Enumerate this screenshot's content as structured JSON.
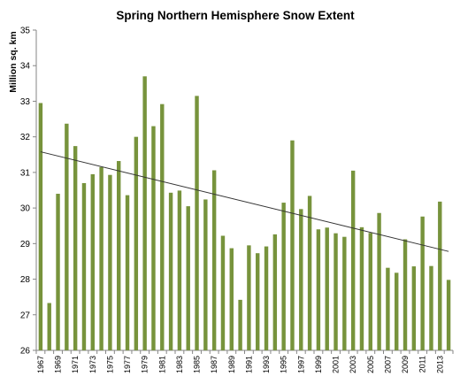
{
  "chart_data": {
    "type": "bar",
    "title": "Spring Northern Hemisphere Snow Extent",
    "xlabel": "",
    "ylabel": "Million sq. km",
    "ylim": [
      26,
      35
    ],
    "yticks": [
      26,
      27,
      28,
      29,
      30,
      31,
      32,
      33,
      34,
      35
    ],
    "grid": false,
    "legend": "none",
    "categories": [
      "1967",
      "1968",
      "1969",
      "1970",
      "1971",
      "1972",
      "1973",
      "1974",
      "1975",
      "1976",
      "1977",
      "1978",
      "1979",
      "1980",
      "1981",
      "1982",
      "1983",
      "1984",
      "1985",
      "1986",
      "1987",
      "1988",
      "1989",
      "1990",
      "1991",
      "1992",
      "1993",
      "1994",
      "1995",
      "1996",
      "1997",
      "1998",
      "1999",
      "2000",
      "2001",
      "2002",
      "2003",
      "2004",
      "2005",
      "2006",
      "2007",
      "2008",
      "2009",
      "2010",
      "2011",
      "2012",
      "2013",
      "2014"
    ],
    "tick_labels": [
      "1967",
      "1969",
      "1971",
      "1973",
      "1975",
      "1977",
      "1979",
      "1981",
      "1983",
      "1985",
      "1987",
      "1989",
      "1991",
      "1993",
      "1995",
      "1997",
      "1999",
      "2001",
      "2003",
      "2005",
      "2007",
      "2009",
      "2011",
      "2013"
    ],
    "series": [
      {
        "values": [
          32.95,
          27.33,
          30.4,
          32.37,
          31.74,
          30.7,
          30.95,
          31.15,
          30.93,
          31.32,
          30.36,
          32.0,
          33.7,
          32.3,
          32.92,
          30.43,
          30.49,
          30.05,
          33.15,
          30.24,
          31.06,
          29.22,
          28.87,
          27.42,
          28.95,
          28.73,
          28.92,
          29.26,
          30.15,
          31.9,
          29.97,
          30.34,
          29.4,
          29.45,
          29.29,
          29.19,
          31.05,
          29.46,
          29.3,
          29.86,
          28.32,
          28.18,
          29.12,
          28.36,
          29.76,
          28.37,
          30.18,
          27.98
        ],
        "color": "#77933c"
      }
    ],
    "trendline": {
      "start": 31.58,
      "end": 28.78,
      "color": "#333333"
    }
  }
}
